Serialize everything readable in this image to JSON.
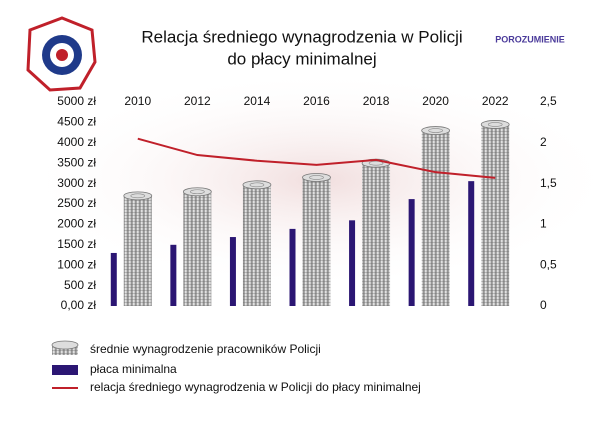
{
  "chart_data": {
    "type": "bar",
    "title": [
      "Relacja średniego wynagrodzenia w Policji",
      "do płacy minimalnej"
    ],
    "logo_text": "POROZUMIENIE",
    "categories": [
      "2010",
      "2012",
      "2014",
      "2016",
      "2018",
      "2020",
      "2022"
    ],
    "series": [
      {
        "name": "średnie wynagrodzenie pracowników Policji",
        "color": "#a8a8a8",
        "values": [
          2700,
          2800,
          2970,
          3150,
          3500,
          4300,
          4450
        ]
      },
      {
        "name": "płaca minimalna",
        "color": "#2b1673",
        "values": [
          1300,
          1500,
          1690,
          1890,
          2100,
          2620,
          3060
        ]
      },
      {
        "name": "relacja średniego wynagrodzenia w Policji do płacy minimalnej",
        "color": "#c0202a",
        "axis": "y2",
        "values": [
          2.05,
          1.85,
          1.78,
          1.73,
          1.79,
          1.64,
          1.57
        ]
      }
    ],
    "ylim": [
      0,
      5000
    ],
    "yticks": [
      {
        "value": 0,
        "label": "0,00 zł"
      },
      {
        "value": 500,
        "label": "500 zł"
      },
      {
        "value": 1000,
        "label": "1000 zł"
      },
      {
        "value": 1500,
        "label": "1500 zł"
      },
      {
        "value": 2000,
        "label": "2000 zł"
      },
      {
        "value": 2500,
        "label": "2500 zł"
      },
      {
        "value": 3000,
        "label": "3000 zł"
      },
      {
        "value": 3500,
        "label": "3500 zł"
      },
      {
        "value": 4000,
        "label": "4000 zł"
      },
      {
        "value": 4500,
        "label": "4500 zł"
      },
      {
        "value": 5000,
        "label": "5000 zł"
      }
    ],
    "y2lim": [
      0,
      2.5
    ],
    "y2ticks": [
      0,
      {
        "value": 0.5,
        "label": "0,5"
      },
      1,
      {
        "value": 1.5,
        "label": "1,5"
      },
      2,
      {
        "value": 2.5,
        "label": "2,5"
      }
    ]
  }
}
